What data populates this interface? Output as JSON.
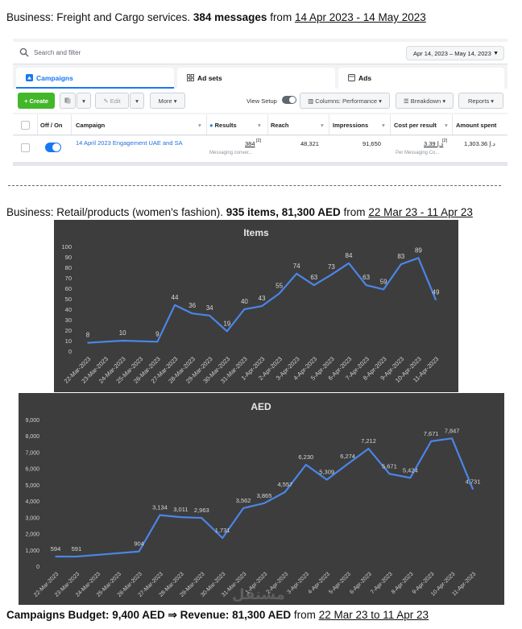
{
  "header_line": {
    "prefix": "Business: Freight and Cargo services. ",
    "bold": "384 messages",
    "mid": " from ",
    "underline": "14 Apr 2023 - 14 May 2023"
  },
  "ads_manager": {
    "search_placeholder": "Search and filter",
    "date_range": "Apr 14, 2023 – May 14, 2023",
    "tabs": [
      {
        "label": "Campaigns"
      },
      {
        "label": "Ad sets"
      },
      {
        "label": "Ads"
      }
    ],
    "toolbar": {
      "create": "+ Create",
      "edit": "Edit",
      "more": "More",
      "view_setup": "View Setup",
      "columns": "Columns: Performance",
      "breakdown": "Breakdown",
      "reports": "Reports"
    },
    "columns": {
      "off_on": "Off / On",
      "campaign": "Campaign",
      "results": "Results",
      "reach": "Reach",
      "impressions": "Impressions",
      "cost_per_result": "Cost per result",
      "amount_spent": "Amount spent"
    },
    "row": {
      "campaign": "14 April 2023 Engagement UAE and SA",
      "results": "384",
      "results_sup": "[2]",
      "results_sub": "Messaging conver...",
      "reach": "48,321",
      "impressions": "91,650",
      "cost_per_result": "3.39 د.إ",
      "cost_sup": "[2]",
      "cost_sub": "Per Messaging Co...",
      "amount_spent": "1,303.36 د.إ"
    }
  },
  "retail_line": {
    "prefix": "Business: Retail/products (women's fashion). ",
    "bold": "935 items, 81,300 AED",
    "mid": " from ",
    "underline": "22 Mar 23 - 11 Apr 23"
  },
  "footer_line": {
    "bold": "Campaigns Budget: 9,400 AED ⇒ Revenue: 81,300 AED",
    "mid": " from ",
    "underline": "22 Mar 23 to 11 Apr 23"
  },
  "watermark": "مستقل",
  "chart_data": [
    {
      "type": "line",
      "title": "Items",
      "line_color": "#4a86e8",
      "background": "#3d3d3d",
      "ylim": [
        0,
        100
      ],
      "yticks": [
        0,
        10,
        20,
        30,
        40,
        50,
        60,
        70,
        80,
        90,
        100
      ],
      "categories": [
        "22-Mar-2023",
        "23-Mar-2023",
        "24-Mar-2023",
        "25-Mar-2023",
        "26-Mar-2023",
        "27-Mar-2023",
        "28-Mar-2023",
        "29-Mar-2023",
        "30-Mar-2023",
        "31-Mar-2023",
        "1-Apr-2023",
        "2-Apr-2023",
        "3-Apr-2023",
        "4-Apr-2023",
        "5-Apr-2023",
        "6-Apr-2023",
        "7-Apr-2023",
        "8-Apr-2023",
        "9-Apr-2023",
        "10-Apr-2023",
        "11-Apr-2023"
      ],
      "values": [
        8,
        null,
        10,
        null,
        9,
        44,
        36,
        34,
        19,
        40,
        43,
        55,
        74,
        63,
        73,
        84,
        63,
        59,
        83,
        89,
        49
      ],
      "labels": [
        "8",
        "",
        "10",
        "",
        "9",
        "44",
        "36",
        "34",
        "19",
        "40",
        "43",
        "55",
        "74",
        "63",
        "73",
        "84",
        "63",
        "59",
        "83",
        "89",
        "49"
      ]
    },
    {
      "type": "line",
      "title": "AED",
      "line_color": "#4a86e8",
      "background": "#3d3d3d",
      "ylim": [
        0,
        9000
      ],
      "yticks": [
        "0",
        "1,000",
        "2,000",
        "3,000",
        "4,000",
        "5,000",
        "6,000",
        "7,000",
        "8,000",
        "9,000"
      ],
      "categories": [
        "22-Mar-2023",
        "23-Mar-2023",
        "24-Mar-2023",
        "25-Mar-2023",
        "26-Mar-2023",
        "27-Mar-2023",
        "28-Mar-2023",
        "29-Mar-2023",
        "30-Mar-2023",
        "31-Mar-2023",
        "1-Apr-2023",
        "2-Apr-2023",
        "3-Apr-2023",
        "4-Apr-2023",
        "5-Apr-2023",
        "6-Apr-2023",
        "7-Apr-2023",
        "8-Apr-2023",
        "9-Apr-2023",
        "10-Apr-2023",
        "11-Apr-2023"
      ],
      "values": [
        594,
        591,
        null,
        null,
        904,
        3134,
        3011,
        2963,
        1731,
        3562,
        3865,
        4557,
        6230,
        5309,
        6274,
        7212,
        5671,
        5424,
        7671,
        7847,
        4731
      ],
      "labels": [
        "594",
        "591",
        "",
        "",
        "904",
        "3,134",
        "3,011",
        "2,963",
        "1,731",
        "3,562",
        "3,865",
        "4,557",
        "6,230",
        "5,309",
        "6,274",
        "7,212",
        "5,671",
        "5,424",
        "7,671",
        "7,847",
        "4,731"
      ]
    }
  ]
}
